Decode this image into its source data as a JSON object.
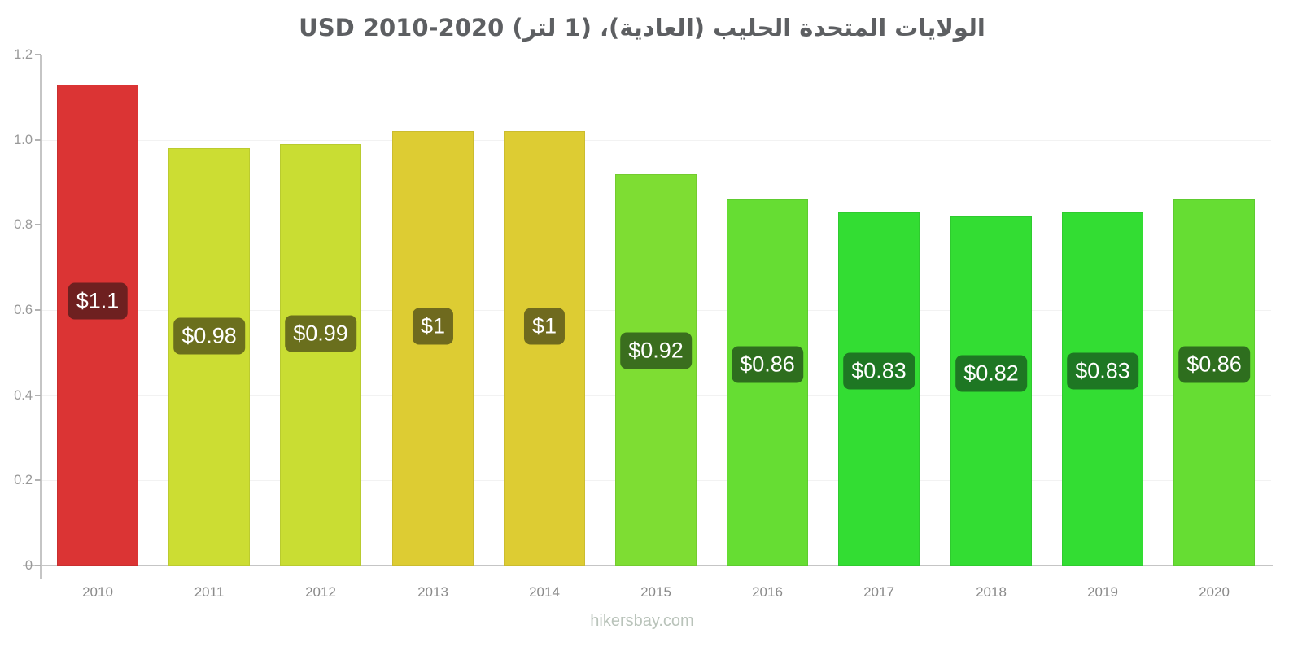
{
  "footer": {
    "watermark": "hikersbay.com"
  },
  "chart_data": {
    "type": "bar",
    "title": "الولايات المتحدة الحليب (العادية)، (1 لتر) 2020-2010 USD",
    "title_meaning": "United States Milk (regular), (1 liter), 2010-2020, USD",
    "categories": [
      "2010",
      "2011",
      "2012",
      "2013",
      "2014",
      "2015",
      "2016",
      "2017",
      "2018",
      "2019",
      "2020"
    ],
    "values": [
      1.13,
      0.98,
      0.99,
      1.02,
      1.02,
      0.92,
      0.86,
      0.83,
      0.82,
      0.83,
      0.86
    ],
    "bar_labels": [
      "$1.1",
      "$0.98",
      "$0.99",
      "$1",
      "$1",
      "$0.92",
      "$0.86",
      "$0.83",
      "$0.82",
      "$0.83",
      "$0.86"
    ],
    "bar_colors": [
      "#db3434",
      "#ccdd33",
      "#c9dd33",
      "#ddcc33",
      "#ddcc33",
      "#7edd33",
      "#66dd33",
      "#33dd33",
      "#33dd33",
      "#33dd33",
      "#66dd33"
    ],
    "label_bg_colors": [
      "#6e2020",
      "#6b6f1d",
      "#6a6f1d",
      "#6f6a1e",
      "#6f6a1e",
      "#3a6e1e",
      "#2e6e1e",
      "#1e7723",
      "#1e7723",
      "#1e7723",
      "#2e6e1e"
    ],
    "xlabel": "",
    "ylabel": "",
    "ylim": [
      0,
      1.2
    ],
    "yticks": [
      {
        "value": 1.2,
        "label": "1.2"
      },
      {
        "value": 1.0,
        "label": "1.0"
      },
      {
        "value": 0.8,
        "label": "0.8"
      },
      {
        "value": 0.6,
        "label": "0.6"
      },
      {
        "value": 0.4,
        "label": "0.4"
      },
      {
        "value": 0.2,
        "label": "0.2"
      },
      {
        "value": 0,
        "label": "0"
      }
    ],
    "grid": true,
    "legend_position": "none",
    "currency": "USD"
  },
  "colors": {
    "background": "#ffffff",
    "axis": "#c5c5c5",
    "tick": "#b2b2b2",
    "gridline": "#f2f2f2",
    "title_text": "#5d5f62",
    "axis_label_text": "#999999",
    "x_label_text": "#8a8a8a",
    "bar_value_text": "#ffffff",
    "watermark_text": "#b9c3ba"
  }
}
